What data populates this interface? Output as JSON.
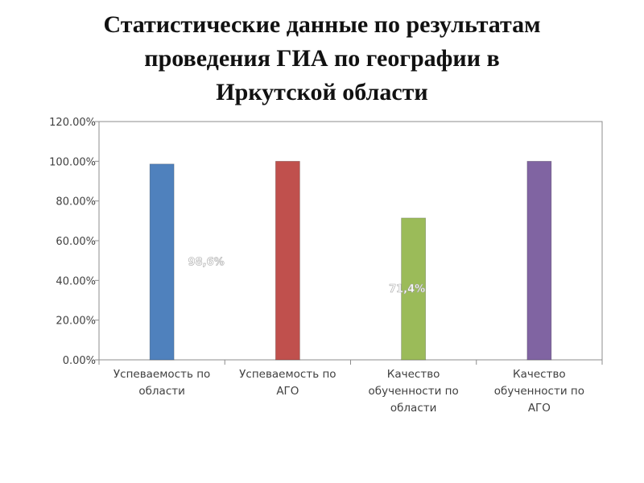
{
  "title_lines": [
    "Статистические данные по результатам",
    "проведения ГИА по географии в",
    "Иркутской области"
  ],
  "chart_data": {
    "type": "bar",
    "title": "Статистические данные по результатам проведения ГИА по географии в Иркутской области",
    "categories": [
      [
        "Успеваемость по",
        "области"
      ],
      [
        "Успеваемость по",
        "АГО"
      ],
      [
        "Качество",
        "обученности по",
        "области"
      ],
      [
        "Качество",
        "обученности по",
        "АГО"
      ]
    ],
    "values": [
      0.986,
      1.0,
      0.714,
      1.0
    ],
    "data_labels": [
      "98,6%",
      "",
      "71,4%",
      ""
    ],
    "colors": [
      "#4f81bd",
      "#c0504d",
      "#9bbb59",
      "#8064a2"
    ],
    "ylim": [
      0,
      1.2
    ],
    "yticks": [
      {
        "value": 0,
        "label": "0.00%"
      },
      {
        "value": 0.2,
        "label": "20.00%"
      },
      {
        "value": 0.4,
        "label": "40.00%"
      },
      {
        "value": 0.6,
        "label": "60.00%"
      },
      {
        "value": 0.8,
        "label": "80.00%"
      },
      {
        "value": 1.0,
        "label": "100.00%"
      },
      {
        "value": 1.2,
        "label": "120.00%"
      }
    ],
    "grid": false,
    "legend": "none",
    "xlabel": "",
    "ylabel": ""
  }
}
